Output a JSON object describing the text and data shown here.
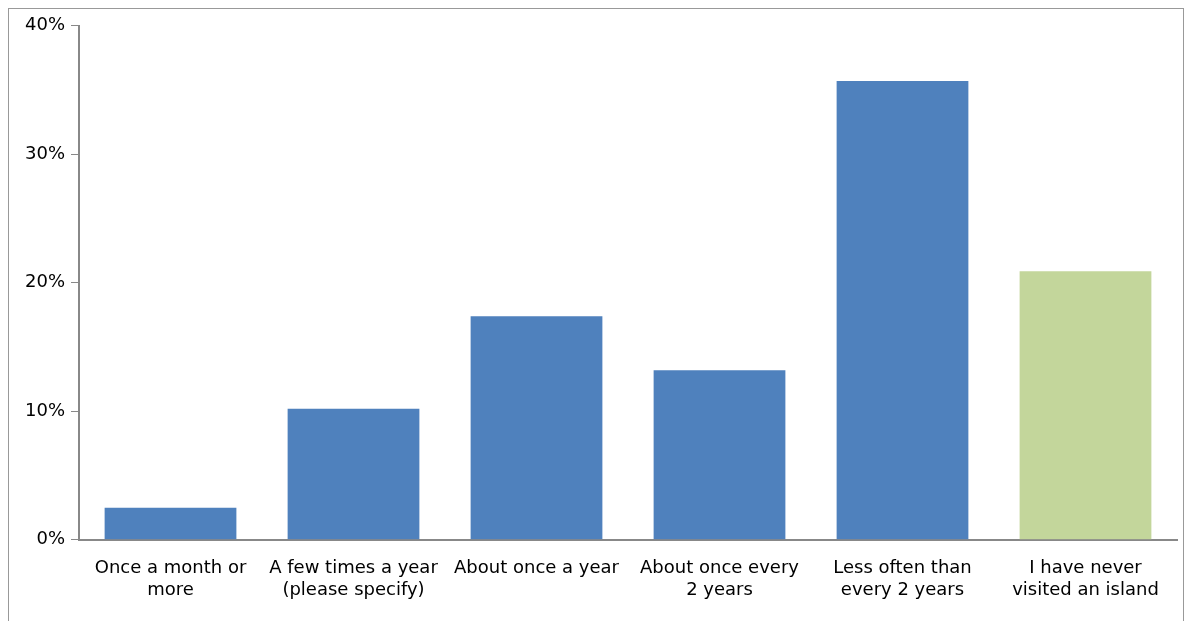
{
  "chart_data": {
    "type": "bar",
    "categories": [
      "Once a month or more",
      "A few times a year (please specify)",
      "About once a year",
      "About once every 2 years",
      "Less often than every 2 years",
      "I have never visited an island"
    ],
    "values": [
      2.5,
      10.2,
      17.4,
      13.2,
      35.7,
      20.9
    ],
    "colors": [
      "#4f81bd",
      "#4f81bd",
      "#4f81bd",
      "#4f81bd",
      "#4f81bd",
      "#c3d69b"
    ],
    "ylim": [
      0,
      40
    ],
    "yticks": [
      {
        "value": 0,
        "label": "0%"
      },
      {
        "value": 10,
        "label": "10%"
      },
      {
        "value": 20,
        "label": "20%"
      },
      {
        "value": 30,
        "label": "30%"
      },
      {
        "value": 40,
        "label": "40%"
      }
    ],
    "grid": false,
    "legend": false
  }
}
